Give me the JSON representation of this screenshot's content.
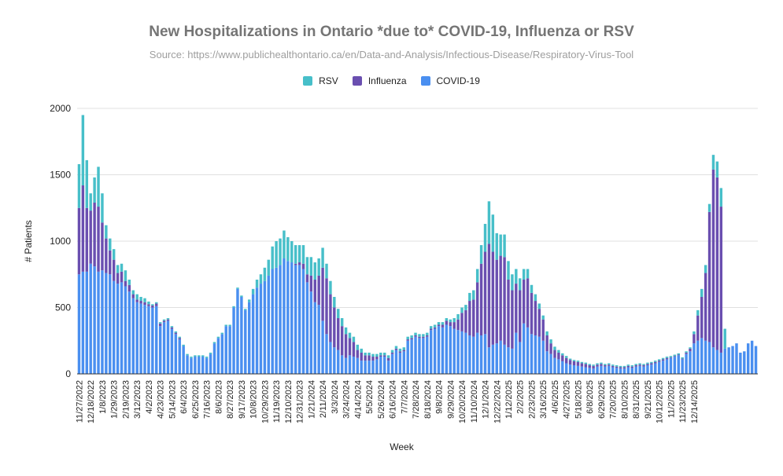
{
  "chart_data": {
    "type": "bar",
    "stacked": true,
    "title": "New Hospitalizations in Ontario *due to* COVID-19, Influenza or RSV",
    "subtitle": "Source: https://www.publichealthontario.ca/en/Data-and-Analysis/Infectious-Disease/Respiratory-Virus-Tool",
    "xlabel": "Week",
    "ylabel": "# Patients",
    "ylim": [
      0,
      2000
    ],
    "yticks": [
      0,
      500,
      1000,
      1500,
      2000
    ],
    "grid": true,
    "legend_position": "top",
    "legend": [
      {
        "name": "RSV",
        "color": "#47bfc9"
      },
      {
        "name": "Influenza",
        "color": "#6a4fb0"
      },
      {
        "name": "COVID-19",
        "color": "#4a8ff0"
      }
    ],
    "tick_labels": [
      "11/27/2022",
      "12/18/2022",
      "1/8/2023",
      "1/29/2023",
      "2/19/2023",
      "3/12/2023",
      "4/2/2023",
      "4/23/2023",
      "5/14/2023",
      "6/4/2023",
      "6/25/2023",
      "7/16/2023",
      "8/6/2023",
      "8/27/2023",
      "9/17/2023",
      "10/8/2023",
      "10/29/2023",
      "11/19/2023",
      "12/10/2023",
      "12/31/2023",
      "1/21/2024",
      "2/11/2024",
      "3/3/2024",
      "3/24/2024",
      "4/14/2024",
      "5/5/2024",
      "5/26/2024",
      "6/16/2024",
      "7/7/2024",
      "7/28/2024",
      "8/18/2024",
      "9/8/2024",
      "9/29/2024",
      "10/20/2024",
      "11/10/2024",
      "12/1/2024",
      "12/22/2024",
      "1/12/2025",
      "2/2/2025",
      "2/23/2025",
      "3/16/2025",
      "4/6/2025",
      "4/27/2025",
      "5/18/2025",
      "6/8/2025",
      "6/29/2025",
      "7/20/2025",
      "8/10/2025",
      "8/31/2025",
      "9/21/2025",
      "10/12/2025",
      "11/2/2025",
      "11/23/2025",
      "12/14/2025"
    ],
    "series": [
      {
        "name": "COVID-19",
        "values": [
          750,
          770,
          770,
          830,
          810,
          770,
          780,
          760,
          750,
          700,
          680,
          690,
          660,
          620,
          570,
          540,
          530,
          520,
          510,
          500,
          510,
          360,
          390,
          400,
          340,
          300,
          260,
          210,
          140,
          120,
          130,
          130,
          130,
          120,
          150,
          230,
          270,
          300,
          360,
          360,
          500,
          640,
          580,
          480,
          540,
          600,
          650,
          680,
          700,
          740,
          790,
          800,
          820,
          870,
          850,
          840,
          820,
          820,
          790,
          690,
          620,
          540,
          520,
          400,
          300,
          240,
          200,
          180,
          140,
          120,
          140,
          130,
          120,
          100,
          100,
          100,
          100,
          110,
          130,
          130,
          100,
          150,
          180,
          160,
          170,
          250,
          260,
          280,
          270,
          270,
          280,
          330,
          340,
          360,
          350,
          370,
          360,
          340,
          330,
          320,
          310,
          290,
          280,
          310,
          290,
          300,
          200,
          220,
          230,
          250,
          220,
          200,
          190,
          310,
          240,
          380,
          350,
          300,
          290,
          280,
          250,
          170,
          150,
          120,
          110,
          95,
          80,
          70,
          65,
          60,
          55,
          50,
          45,
          40,
          55,
          60,
          55,
          60,
          50,
          45,
          40,
          40,
          50,
          45,
          55,
          60,
          55,
          65,
          70,
          80,
          90,
          100,
          110,
          120,
          130,
          140,
          110,
          150,
          170,
          230,
          250,
          270,
          250,
          240,
          200,
          180,
          160,
          190,
          200,
          210,
          230,
          160,
          170,
          230,
          250,
          210
        ]
      },
      {
        "name": "Influenza",
        "values": [
          500,
          650,
          480,
          400,
          480,
          490,
          360,
          260,
          180,
          160,
          80,
          80,
          40,
          50,
          30,
          20,
          20,
          20,
          15,
          15,
          20,
          20,
          10,
          10,
          10,
          10,
          10,
          0,
          0,
          0,
          0,
          0,
          0,
          0,
          0,
          0,
          0,
          0,
          0,
          0,
          0,
          0,
          0,
          0,
          0,
          0,
          0,
          0,
          0,
          0,
          0,
          0,
          0,
          0,
          0,
          0,
          10,
          20,
          40,
          60,
          120,
          170,
          220,
          400,
          420,
          360,
          300,
          240,
          220,
          180,
          130,
          110,
          60,
          60,
          40,
          40,
          30,
          20,
          10,
          10,
          20,
          10,
          10,
          10,
          10,
          10,
          10,
          10,
          10,
          10,
          10,
          10,
          10,
          10,
          20,
          30,
          30,
          50,
          80,
          140,
          170,
          260,
          280,
          380,
          540,
          620,
          780,
          700,
          630,
          640,
          660,
          510,
          440,
          370,
          390,
          330,
          370,
          310,
          260,
          210,
          160,
          120,
          80,
          60,
          50,
          45,
          40,
          35,
          30,
          30,
          25,
          25,
          20,
          20,
          15,
          15,
          10,
          10,
          10,
          10,
          10,
          10,
          10,
          10,
          10,
          10,
          10,
          10,
          10,
          10,
          10,
          10,
          10,
          5,
          5,
          5,
          5,
          10,
          20,
          70,
          190,
          310,
          510,
          980,
          1340,
          1300,
          1100
        ]
      },
      {
        "name": "RSV",
        "values": [
          330,
          530,
          360,
          130,
          190,
          300,
          220,
          100,
          90,
          80,
          60,
          60,
          80,
          40,
          30,
          40,
          30,
          30,
          20,
          10,
          10,
          10,
          10,
          10,
          10,
          10,
          10,
          10,
          10,
          10,
          10,
          10,
          10,
          10,
          10,
          10,
          10,
          10,
          10,
          10,
          10,
          10,
          10,
          10,
          20,
          40,
          60,
          70,
          100,
          120,
          170,
          200,
          200,
          210,
          180,
          160,
          140,
          130,
          140,
          130,
          140,
          130,
          130,
          150,
          110,
          100,
          80,
          70,
          60,
          50,
          40,
          40,
          40,
          30,
          20,
          20,
          20,
          20,
          20,
          20,
          20,
          20,
          20,
          20,
          20,
          20,
          20,
          20,
          20,
          20,
          20,
          20,
          20,
          20,
          20,
          20,
          20,
          30,
          40,
          40,
          40,
          60,
          70,
          100,
          140,
          210,
          320,
          280,
          200,
          160,
          170,
          140,
          120,
          110,
          90,
          80,
          70,
          60,
          50,
          40,
          30,
          30,
          30,
          25,
          20,
          15,
          15,
          10,
          10,
          10,
          10,
          10,
          10,
          10,
          10,
          10,
          10,
          10,
          10,
          10,
          10,
          10,
          10,
          10,
          10,
          10,
          10,
          10,
          10,
          10,
          10,
          10,
          10,
          10,
          10,
          10,
          10,
          10,
          10,
          20,
          40,
          60,
          60,
          60,
          110,
          120,
          140,
          150
        ]
      }
    ]
  }
}
